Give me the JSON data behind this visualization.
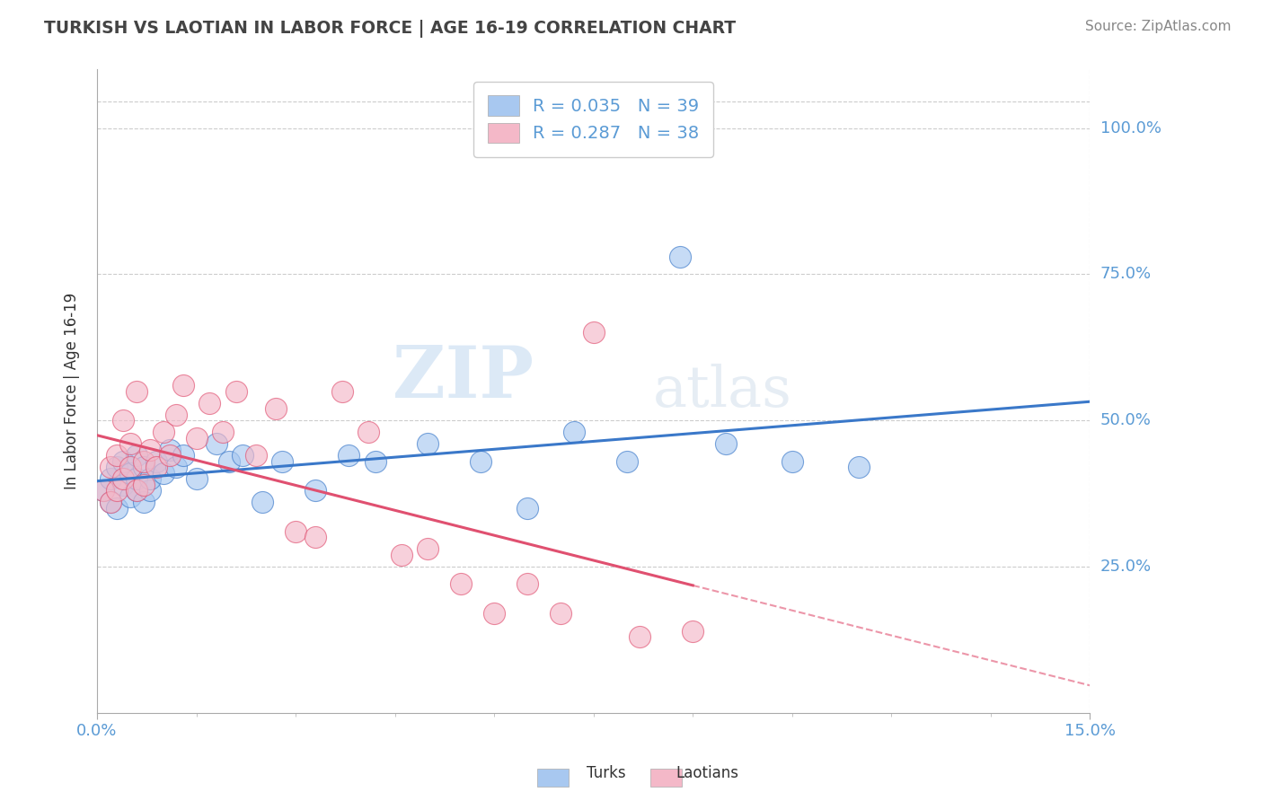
{
  "title": "TURKISH VS LAOTIAN IN LABOR FORCE | AGE 16-19 CORRELATION CHART",
  "source_text": "Source: ZipAtlas.com",
  "ylabel": "In Labor Force | Age 16-19",
  "xlim": [
    0.0,
    0.15
  ],
  "ylim": [
    0.0,
    1.1
  ],
  "ytick_labels": [
    "25.0%",
    "50.0%",
    "75.0%",
    "100.0%"
  ],
  "ytick_values": [
    0.25,
    0.5,
    0.75,
    1.0
  ],
  "r_turks": 0.035,
  "n_turks": 39,
  "r_laotians": 0.287,
  "n_laotians": 38,
  "color_turks": "#a8c8f0",
  "color_laotians": "#f4b8c8",
  "color_trend_turks": "#3a78c9",
  "color_trend_laotians": "#e05070",
  "turks_x": [
    0.001,
    0.002,
    0.002,
    0.003,
    0.003,
    0.004,
    0.004,
    0.005,
    0.005,
    0.006,
    0.006,
    0.006,
    0.007,
    0.007,
    0.008,
    0.008,
    0.009,
    0.01,
    0.011,
    0.012,
    0.013,
    0.015,
    0.018,
    0.02,
    0.022,
    0.025,
    0.028,
    0.033,
    0.038,
    0.042,
    0.05,
    0.058,
    0.065,
    0.072,
    0.08,
    0.088,
    0.095,
    0.105,
    0.115
  ],
  "turks_y": [
    0.38,
    0.4,
    0.36,
    0.42,
    0.35,
    0.39,
    0.43,
    0.37,
    0.41,
    0.38,
    0.4,
    0.44,
    0.36,
    0.42,
    0.38,
    0.4,
    0.43,
    0.41,
    0.45,
    0.42,
    0.44,
    0.4,
    0.46,
    0.43,
    0.44,
    0.36,
    0.43,
    0.38,
    0.44,
    0.43,
    0.46,
    0.43,
    0.35,
    0.48,
    0.43,
    0.78,
    0.46,
    0.43,
    0.42
  ],
  "laotians_x": [
    0.001,
    0.002,
    0.002,
    0.003,
    0.003,
    0.004,
    0.004,
    0.005,
    0.005,
    0.006,
    0.006,
    0.007,
    0.007,
    0.008,
    0.009,
    0.01,
    0.011,
    0.012,
    0.013,
    0.015,
    0.017,
    0.019,
    0.021,
    0.024,
    0.027,
    0.03,
    0.033,
    0.037,
    0.041,
    0.046,
    0.05,
    0.055,
    0.06,
    0.065,
    0.07,
    0.075,
    0.082,
    0.09
  ],
  "laotians_y": [
    0.38,
    0.42,
    0.36,
    0.44,
    0.38,
    0.5,
    0.4,
    0.46,
    0.42,
    0.55,
    0.38,
    0.43,
    0.39,
    0.45,
    0.42,
    0.48,
    0.44,
    0.51,
    0.56,
    0.47,
    0.53,
    0.48,
    0.55,
    0.44,
    0.52,
    0.31,
    0.3,
    0.55,
    0.48,
    0.27,
    0.28,
    0.22,
    0.17,
    0.22,
    0.17,
    0.65,
    0.13,
    0.14
  ],
  "watermark_zip": "ZIP",
  "watermark_atlas": "atlas",
  "background_color": "#ffffff",
  "grid_color": "#cccccc",
  "title_color": "#444444",
  "axis_color": "#5b9bd5",
  "legend_text_color": "#5b9bd5"
}
